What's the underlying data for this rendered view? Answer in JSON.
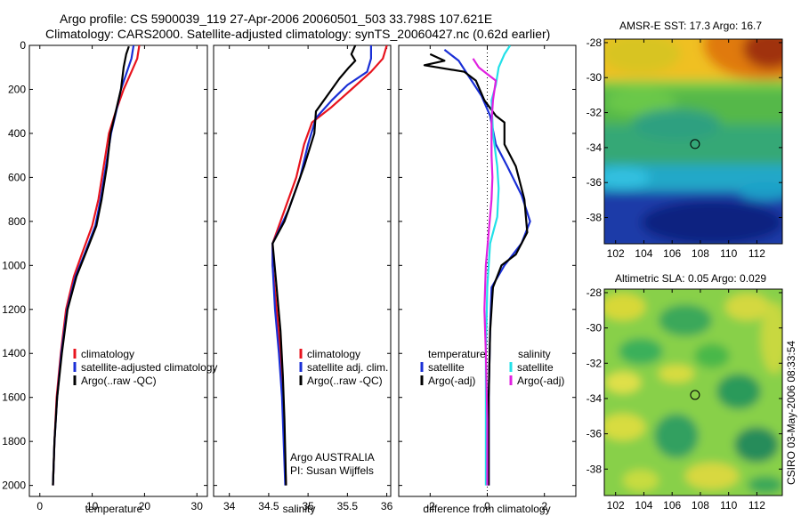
{
  "title_line1": "Argo profile: CS 5900039_119 27-Apr-2006 20060501_503 33.798S 107.621E",
  "title_line2": "Climatology: CARS2000. Satellite-adjusted climatology: synTS_20060427.nc (0.62d earlier)",
  "side_text": "CSIRO 03-May-2006 08:33:54",
  "colors": {
    "clim": "#e8141e",
    "sat": "#1a2fd6",
    "argo": "#000000",
    "sal_sat": "#22e0e8",
    "sal_argo": "#e020e0"
  },
  "chart_data": [
    {
      "type": "line",
      "title": "",
      "xlabel": "temperature",
      "ylabel": "",
      "xlim": [
        -2,
        32
      ],
      "ylim": [
        2050,
        0
      ],
      "xticks": [
        "0",
        "10",
        "20",
        "30"
      ],
      "yticks": [
        "0",
        "200",
        "400",
        "600",
        "800",
        "1000",
        "1200",
        "1400",
        "1600",
        "1800",
        "2000"
      ],
      "legend": [
        "climatology",
        "satellite-adjusted climatology",
        "Argo(..raw -QC)"
      ],
      "series": [
        {
          "name": "climatology",
          "color_key": "clim",
          "points": [
            [
              19,
              0
            ],
            [
              18.6,
              60
            ],
            [
              17.5,
              120
            ],
            [
              16,
              200
            ],
            [
              14.5,
              300
            ],
            [
              13.2,
              400
            ],
            [
              12.2,
              550
            ],
            [
              11.2,
              700
            ],
            [
              10,
              820
            ],
            [
              8,
              950
            ],
            [
              6.5,
              1050
            ],
            [
              5,
              1200
            ],
            [
              4,
              1400
            ],
            [
              3.2,
              1600
            ],
            [
              2.8,
              1800
            ],
            [
              2.5,
              2000
            ]
          ]
        },
        {
          "name": "satellite-adjusted climatology",
          "color_key": "sat",
          "points": [
            [
              17.9,
              0
            ],
            [
              17.5,
              60
            ],
            [
              16.5,
              130
            ],
            [
              15.5,
              200
            ],
            [
              14.6,
              300
            ],
            [
              13.6,
              400
            ],
            [
              12.6,
              550
            ],
            [
              11.6,
              700
            ],
            [
              10.6,
              820
            ],
            [
              8.5,
              950
            ],
            [
              6.8,
              1050
            ],
            [
              5.2,
              1200
            ],
            [
              4.1,
              1400
            ],
            [
              3.3,
              1600
            ],
            [
              2.8,
              1800
            ],
            [
              2.5,
              2000
            ]
          ]
        },
        {
          "name": "Argo(..raw -QC)",
          "color_key": "argo",
          "points": [
            [
              17,
              5
            ],
            [
              16.5,
              40
            ],
            [
              16,
              100
            ],
            [
              15.5,
              200
            ],
            [
              14.5,
              300
            ],
            [
              13.5,
              400
            ],
            [
              12.8,
              550
            ],
            [
              11.8,
              700
            ],
            [
              10.8,
              820
            ],
            [
              9,
              930
            ],
            [
              7,
              1050
            ],
            [
              5.3,
              1200
            ],
            [
              4.2,
              1400
            ],
            [
              3.3,
              1600
            ],
            [
              2.8,
              1800
            ],
            [
              2.5,
              2000
            ]
          ]
        }
      ]
    },
    {
      "type": "line",
      "title": "",
      "xlabel": "salinity",
      "ylabel": "",
      "xlim": [
        33.8,
        36.05
      ],
      "ylim": [
        2050,
        0
      ],
      "xticks": [
        "34",
        "34.5",
        "35",
        "35.5",
        "36"
      ],
      "legend": [
        "climatology",
        "satellite adj. clim.",
        "Argo(..raw -QC)"
      ],
      "annotations": [
        "Argo AUSTRALIA",
        "PI: Susan Wijffels"
      ],
      "series": [
        {
          "name": "climatology",
          "color_key": "clim",
          "points": [
            [
              36,
              0
            ],
            [
              35.95,
              60
            ],
            [
              35.8,
              120
            ],
            [
              35.55,
              200
            ],
            [
              35.3,
              280
            ],
            [
              35.05,
              350
            ],
            [
              34.95,
              450
            ],
            [
              34.85,
              600
            ],
            [
              34.7,
              750
            ],
            [
              34.55,
              900
            ],
            [
              34.55,
              1000
            ],
            [
              34.6,
              1200
            ],
            [
              34.65,
              1400
            ],
            [
              34.68,
              1600
            ],
            [
              34.7,
              1800
            ],
            [
              34.72,
              2000
            ]
          ]
        },
        {
          "name": "satellite adj. clim.",
          "color_key": "sat",
          "points": [
            [
              35.8,
              0
            ],
            [
              35.8,
              60
            ],
            [
              35.75,
              120
            ],
            [
              35.5,
              180
            ],
            [
              35.3,
              250
            ],
            [
              35.1,
              330
            ],
            [
              35,
              450
            ],
            [
              34.9,
              600
            ],
            [
              34.75,
              750
            ],
            [
              34.55,
              900
            ],
            [
              34.55,
              1000
            ],
            [
              34.58,
              1200
            ],
            [
              34.63,
              1400
            ],
            [
              34.67,
              1600
            ],
            [
              34.69,
              1800
            ],
            [
              34.71,
              2000
            ]
          ]
        },
        {
          "name": "Argo(..raw -QC)",
          "color_key": "argo",
          "points": [
            [
              35.6,
              0
            ],
            [
              35.55,
              40
            ],
            [
              35.6,
              70
            ],
            [
              35.52,
              100
            ],
            [
              35.4,
              150
            ],
            [
              35.3,
              200
            ],
            [
              35.1,
              300
            ],
            [
              35.08,
              400
            ],
            [
              34.95,
              550
            ],
            [
              34.85,
              650
            ],
            [
              34.7,
              800
            ],
            [
              34.55,
              900
            ],
            [
              34.6,
              1100
            ],
            [
              34.65,
              1300
            ],
            [
              34.68,
              1500
            ],
            [
              34.7,
              1700
            ],
            [
              34.72,
              2000
            ]
          ]
        }
      ]
    },
    {
      "type": "line",
      "title": "",
      "xlabel": "difference from climatology",
      "ylabel": "",
      "xlim": [
        -3.1,
        3.1
      ],
      "ylim": [
        2050,
        0
      ],
      "xticks": [
        "-2",
        "0",
        "2"
      ],
      "legend": [
        "temperature",
        "satellite",
        "Argo(-adj)",
        "salinity",
        "satellite",
        "Argo(-adj)"
      ],
      "series": [
        {
          "name": "temperature satellite",
          "color_key": "sat",
          "points": [
            [
              -1.5,
              20
            ],
            [
              -1,
              70
            ],
            [
              -0.6,
              150
            ],
            [
              -0.2,
              230
            ],
            [
              0.1,
              320
            ],
            [
              0.3,
              450
            ],
            [
              0.7,
              550
            ],
            [
              1.2,
              680
            ],
            [
              1.5,
              800
            ],
            [
              1.2,
              900
            ],
            [
              0.6,
              1000
            ],
            [
              0.15,
              1100
            ],
            [
              0.1,
              1300
            ],
            [
              0.05,
              1600
            ],
            [
              0.05,
              2000
            ]
          ]
        },
        {
          "name": "temperature Argo(-adj)",
          "color_key": "argo",
          "points": [
            [
              -2,
              40
            ],
            [
              -1.5,
              70
            ],
            [
              -2.2,
              90
            ],
            [
              -0.8,
              120
            ],
            [
              -0.4,
              160
            ],
            [
              -0.1,
              250
            ],
            [
              0.3,
              320
            ],
            [
              0.6,
              350
            ],
            [
              0.6,
              450
            ],
            [
              1,
              550
            ],
            [
              1.3,
              700
            ],
            [
              1.4,
              850
            ],
            [
              1,
              950
            ],
            [
              0.5,
              1000
            ],
            [
              0.2,
              1100
            ],
            [
              0.1,
              1300
            ],
            [
              0.05,
              1600
            ],
            [
              0.05,
              2000
            ]
          ]
        },
        {
          "name": "salinity satellite",
          "color_key": "sal_sat",
          "points": [
            [
              0.8,
              0
            ],
            [
              0.6,
              40
            ],
            [
              0.4,
              100
            ],
            [
              0.3,
              180
            ],
            [
              0.15,
              250
            ],
            [
              0.2,
              400
            ],
            [
              0.35,
              550
            ],
            [
              0.4,
              650
            ],
            [
              0.35,
              780
            ],
            [
              0.1,
              900
            ],
            [
              0,
              1100
            ],
            [
              -0.05,
              1400
            ],
            [
              -0.05,
              1700
            ],
            [
              -0.05,
              2000
            ]
          ]
        },
        {
          "name": "salinity Argo(-adj)",
          "color_key": "sal_argo",
          "points": [
            [
              -0.5,
              60
            ],
            [
              -0.3,
              100
            ],
            [
              0,
              130
            ],
            [
              0.3,
              160
            ],
            [
              0.2,
              250
            ],
            [
              0.15,
              350
            ],
            [
              0.15,
              500
            ],
            [
              0.18,
              600
            ],
            [
              0.15,
              700
            ],
            [
              0.05,
              850
            ],
            [
              -0.05,
              1000
            ],
            [
              -0.1,
              1200
            ],
            [
              -0.05,
              1400
            ],
            [
              0,
              1700
            ],
            [
              0,
              2000
            ]
          ]
        }
      ]
    },
    {
      "type": "heatmap",
      "title": "AMSR-E SST: 17.3 Argo: 16.7",
      "xlim": [
        101.2,
        113.8
      ],
      "ylim": [
        -39.5,
        -27.8
      ],
      "xticks": [
        "102",
        "104",
        "106",
        "108",
        "110",
        "112"
      ],
      "yticks": [
        "-28",
        "-30",
        "-32",
        "-34",
        "-36",
        "-38"
      ],
      "marker": {
        "lon": 107.621,
        "lat": -33.798
      },
      "field": "warm (orange/red) in north-east, yellow-green band around -31, green near -33, cyan/blue south of -35, dark blue in the south"
    },
    {
      "type": "heatmap",
      "title": "Altimetric SLA: 0.05 Argo: 0.029",
      "xlim": [
        101.2,
        113.8
      ],
      "ylim": [
        -39.5,
        -27.8
      ],
      "xticks": [
        "102",
        "104",
        "106",
        "108",
        "110",
        "112"
      ],
      "yticks": [
        "-28",
        "-30",
        "-32",
        "-34",
        "-36",
        "-38"
      ],
      "marker": {
        "lon": 107.621,
        "lat": -33.798
      },
      "field": "patchy green and yellow sea level anomaly with darker green eddies"
    }
  ]
}
